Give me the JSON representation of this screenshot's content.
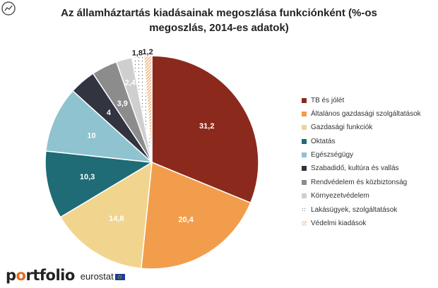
{
  "title_lines": [
    "Az államháztartás kiadásainak megoszlása funkciónként (%-os",
    "megoszlás, 2014-es adatok)"
  ],
  "footer": {
    "brand_first": "p",
    "brand_mark": "o",
    "brand_rest": "rtfolio",
    "source": "eurostat"
  },
  "colors": {
    "tb": "#8b2a1c",
    "altalanos": "#f29d4b",
    "gazdasagi": "#f1d48d",
    "oktatas": "#1f6b76",
    "egeszseg": "#8ec3cf",
    "szabadido": "#323440",
    "rendvedelem": "#8c8c8c",
    "kornyezet": "#cfcfcf",
    "lakas": "#ffffff",
    "vedelmi": "#f5b98c"
  },
  "chart_data": {
    "type": "pie",
    "title": "Az államháztartás kiadásainak megoszlása funkciónként (%-os megoszlás, 2014-es adatok)",
    "start_angle_deg": 0,
    "direction": "clockwise",
    "legend_position": "right",
    "slices": [
      {
        "label": "TB és jólét",
        "value": 31.2,
        "display": "31,2",
        "color": "#8b2a1c",
        "pattern": "solid",
        "text": "#ffffff"
      },
      {
        "label": "Általános gazdasági szolgáltatások",
        "value": 20.4,
        "display": "20,4",
        "color": "#f29d4b",
        "pattern": "solid",
        "text": "#ffffff"
      },
      {
        "label": "Gazdasági funkciók",
        "value": 14.8,
        "display": "14,8",
        "color": "#f1d48d",
        "pattern": "solid",
        "text": "#ffffff"
      },
      {
        "label": "Oktatás",
        "value": 10.3,
        "display": "10,3",
        "color": "#1f6b76",
        "pattern": "solid",
        "text": "#ffffff"
      },
      {
        "label": "Egészségügy",
        "value": 10,
        "display": "10",
        "color": "#8ec3cf",
        "pattern": "solid",
        "text": "#ffffff"
      },
      {
        "label": "Szabadidő, kultúra és vallás",
        "value": 4,
        "display": "4",
        "color": "#323440",
        "pattern": "solid",
        "text": "#ffffff"
      },
      {
        "label": "Rendvédelem és közbiztonság",
        "value": 3.9,
        "display": "3,9",
        "color": "#8c8c8c",
        "pattern": "solid",
        "text": "#ffffff"
      },
      {
        "label": "Környezetvédelem",
        "value": 2.4,
        "display": "2,4",
        "color": "#cfcfcf",
        "pattern": "solid",
        "text": "#ffffff"
      },
      {
        "label": "Lakásügyek, szolgáltatások",
        "value": 1.8,
        "display": "1,8",
        "color": "#ffffff",
        "pattern": "dots",
        "text": "#222222"
      },
      {
        "label": "Védelmi kiadások",
        "value": 1.2,
        "display": "1,2",
        "color": "#f5b98c",
        "pattern": "stripes",
        "text": "#222222"
      }
    ]
  }
}
